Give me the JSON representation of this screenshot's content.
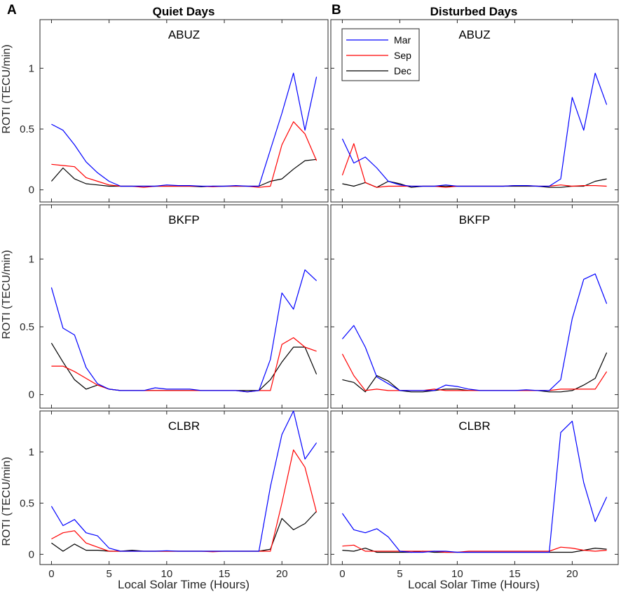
{
  "figure": {
    "panel_labels": [
      "A",
      "B"
    ],
    "column_titles": [
      "Quiet Days",
      "Disturbed Days"
    ],
    "ylabel": "ROTI (TECU/min)",
    "xlabel": "Local Solar Time (Hours)",
    "legend": {
      "entries": [
        "Mar",
        "Sep",
        "Dec"
      ],
      "placement": "top-left of right-top panel"
    },
    "colors": {
      "Mar": "#0000ff",
      "Sep": "#ff0000",
      "Dec": "#000000",
      "axes": "#262626"
    }
  },
  "chart_data": [
    {
      "type": "line",
      "column": "Quiet Days",
      "title": "ABUZ",
      "xlabel": "",
      "ylabel": "ROTI (TECU/min)",
      "xlim": [
        -1,
        24
      ],
      "ylim": [
        -0.1,
        1.4
      ],
      "xticks": [
        0,
        5,
        10,
        15,
        20
      ],
      "yticks": [
        0,
        0.5,
        1
      ],
      "x": [
        0,
        1,
        2,
        3,
        4,
        5,
        6,
        7,
        8,
        9,
        10,
        11,
        12,
        13,
        14,
        15,
        16,
        17,
        18,
        19,
        20,
        21,
        22,
        23
      ],
      "series": [
        {
          "name": "Mar",
          "values": [
            0.54,
            0.49,
            0.37,
            0.23,
            0.14,
            0.07,
            0.03,
            0.03,
            0.03,
            0.03,
            0.04,
            0.035,
            0.035,
            0.03,
            0.03,
            0.03,
            0.035,
            0.03,
            0.03,
            0.33,
            0.63,
            0.96,
            0.49,
            0.93
          ]
        },
        {
          "name": "Sep",
          "values": [
            0.21,
            0.2,
            0.19,
            0.1,
            0.07,
            0.04,
            0.03,
            0.03,
            0.02,
            0.03,
            0.03,
            0.03,
            0.03,
            0.03,
            0.025,
            0.03,
            0.03,
            0.03,
            0.02,
            0.03,
            0.37,
            0.56,
            0.46,
            0.24
          ]
        },
        {
          "name": "Dec",
          "values": [
            0.07,
            0.18,
            0.09,
            0.05,
            0.04,
            0.03,
            0.03,
            0.03,
            0.03,
            0.03,
            0.03,
            0.03,
            0.03,
            0.025,
            0.03,
            0.03,
            0.03,
            0.03,
            0.03,
            0.07,
            0.09,
            0.17,
            0.24,
            0.25
          ]
        }
      ]
    },
    {
      "type": "line",
      "column": "Disturbed Days",
      "title": "ABUZ",
      "xlabel": "",
      "ylabel": "",
      "xlim": [
        -1,
        24
      ],
      "ylim": [
        -0.1,
        1.4
      ],
      "xticks": [
        0,
        5,
        10,
        15,
        20
      ],
      "yticks": [
        0,
        0.5,
        1
      ],
      "x": [
        0,
        1,
        2,
        3,
        4,
        5,
        6,
        7,
        8,
        9,
        10,
        11,
        12,
        13,
        14,
        15,
        16,
        17,
        18,
        19,
        20,
        21,
        22,
        23
      ],
      "series": [
        {
          "name": "Mar",
          "values": [
            0.42,
            0.22,
            0.27,
            0.18,
            0.07,
            0.04,
            0.03,
            0.03,
            0.03,
            0.04,
            0.03,
            0.03,
            0.03,
            0.03,
            0.03,
            0.035,
            0.035,
            0.03,
            0.03,
            0.09,
            0.76,
            0.49,
            0.96,
            0.7
          ]
        },
        {
          "name": "Sep",
          "values": [
            0.12,
            0.38,
            0.06,
            0.02,
            0.03,
            0.03,
            0.03,
            0.03,
            0.03,
            0.02,
            0.03,
            0.03,
            0.03,
            0.03,
            0.03,
            0.035,
            0.035,
            0.03,
            0.03,
            0.04,
            0.03,
            0.035,
            0.035,
            0.03
          ]
        },
        {
          "name": "Dec",
          "values": [
            0.05,
            0.03,
            0.06,
            0.02,
            0.07,
            0.05,
            0.02,
            0.03,
            0.03,
            0.03,
            0.03,
            0.03,
            0.03,
            0.03,
            0.03,
            0.03,
            0.03,
            0.03,
            0.02,
            0.02,
            0.03,
            0.03,
            0.07,
            0.09
          ]
        }
      ]
    },
    {
      "type": "line",
      "column": "Quiet Days",
      "title": "BKFP",
      "xlabel": "",
      "ylabel": "ROTI (TECU/min)",
      "xlim": [
        -1,
        24
      ],
      "ylim": [
        -0.1,
        1.4
      ],
      "xticks": [
        0,
        5,
        10,
        15,
        20
      ],
      "yticks": [
        0,
        0.5,
        1
      ],
      "x": [
        0,
        1,
        2,
        3,
        4,
        5,
        6,
        7,
        8,
        9,
        10,
        11,
        12,
        13,
        14,
        15,
        16,
        17,
        18,
        19,
        20,
        21,
        22,
        23
      ],
      "series": [
        {
          "name": "Mar",
          "values": [
            0.79,
            0.49,
            0.44,
            0.2,
            0.08,
            0.04,
            0.03,
            0.03,
            0.03,
            0.05,
            0.04,
            0.04,
            0.04,
            0.03,
            0.03,
            0.03,
            0.03,
            0.02,
            0.03,
            0.26,
            0.75,
            0.63,
            0.92,
            0.84
          ]
        },
        {
          "name": "Sep",
          "values": [
            0.21,
            0.21,
            0.17,
            0.12,
            0.07,
            0.04,
            0.03,
            0.03,
            0.03,
            0.03,
            0.03,
            0.03,
            0.03,
            0.03,
            0.03,
            0.03,
            0.03,
            0.02,
            0.03,
            0.03,
            0.37,
            0.42,
            0.35,
            0.32
          ]
        },
        {
          "name": "Dec",
          "values": [
            0.38,
            0.24,
            0.11,
            0.04,
            0.07,
            0.04,
            0.03,
            0.03,
            0.03,
            0.03,
            0.03,
            0.03,
            0.03,
            0.03,
            0.03,
            0.03,
            0.03,
            0.03,
            0.03,
            0.11,
            0.24,
            0.35,
            0.35,
            0.15
          ]
        }
      ]
    },
    {
      "type": "line",
      "column": "Disturbed Days",
      "title": "BKFP",
      "xlabel": "",
      "ylabel": "",
      "xlim": [
        -1,
        24
      ],
      "ylim": [
        -0.1,
        1.4
      ],
      "xticks": [
        0,
        5,
        10,
        15,
        20
      ],
      "yticks": [
        0,
        0.5,
        1
      ],
      "x": [
        0,
        1,
        2,
        3,
        4,
        5,
        6,
        7,
        8,
        9,
        10,
        11,
        12,
        13,
        14,
        15,
        16,
        17,
        18,
        19,
        20,
        21,
        22,
        23
      ],
      "series": [
        {
          "name": "Mar",
          "values": [
            0.41,
            0.51,
            0.35,
            0.13,
            0.08,
            0.03,
            0.03,
            0.03,
            0.03,
            0.07,
            0.06,
            0.04,
            0.03,
            0.03,
            0.03,
            0.03,
            0.035,
            0.03,
            0.03,
            0.11,
            0.56,
            0.85,
            0.89,
            0.67
          ]
        },
        {
          "name": "Sep",
          "values": [
            0.3,
            0.14,
            0.03,
            0.04,
            0.03,
            0.03,
            0.03,
            0.03,
            0.04,
            0.03,
            0.03,
            0.03,
            0.03,
            0.03,
            0.03,
            0.03,
            0.03,
            0.03,
            0.03,
            0.04,
            0.04,
            0.04,
            0.04,
            0.17
          ]
        },
        {
          "name": "Dec",
          "values": [
            0.11,
            0.09,
            0.02,
            0.14,
            0.1,
            0.03,
            0.02,
            0.02,
            0.03,
            0.04,
            0.04,
            0.03,
            0.03,
            0.03,
            0.03,
            0.03,
            0.03,
            0.03,
            0.02,
            0.02,
            0.03,
            0.07,
            0.12,
            0.31
          ]
        }
      ]
    },
    {
      "type": "line",
      "column": "Quiet Days",
      "title": "CLBR",
      "xlabel": "Local Solar Time (Hours)",
      "ylabel": "ROTI (TECU/min)",
      "xlim": [
        -1,
        24
      ],
      "ylim": [
        -0.1,
        1.4
      ],
      "xticks": [
        0,
        5,
        10,
        15,
        20
      ],
      "yticks": [
        0,
        0.5,
        1
      ],
      "x": [
        0,
        1,
        2,
        3,
        4,
        5,
        6,
        7,
        8,
        9,
        10,
        11,
        12,
        13,
        14,
        15,
        16,
        17,
        18,
        19,
        20,
        21,
        22,
        23
      ],
      "series": [
        {
          "name": "Mar",
          "values": [
            0.47,
            0.28,
            0.34,
            0.21,
            0.18,
            0.06,
            0.03,
            0.03,
            0.03,
            0.03,
            0.035,
            0.03,
            0.03,
            0.03,
            0.03,
            0.03,
            0.03,
            0.03,
            0.03,
            0.66,
            1.17,
            1.4,
            0.93,
            1.09
          ]
        },
        {
          "name": "Sep",
          "values": [
            0.15,
            0.21,
            0.23,
            0.11,
            0.07,
            0.03,
            0.03,
            0.03,
            0.03,
            0.03,
            0.03,
            0.03,
            0.03,
            0.03,
            0.025,
            0.03,
            0.03,
            0.03,
            0.03,
            0.03,
            0.5,
            1.02,
            0.85,
            0.41
          ]
        },
        {
          "name": "Dec",
          "values": [
            0.11,
            0.03,
            0.1,
            0.04,
            0.04,
            0.03,
            0.03,
            0.04,
            0.03,
            0.03,
            0.03,
            0.03,
            0.03,
            0.03,
            0.03,
            0.03,
            0.03,
            0.03,
            0.03,
            0.05,
            0.35,
            0.24,
            0.3,
            0.42
          ]
        }
      ]
    },
    {
      "type": "line",
      "column": "Disturbed Days",
      "title": "CLBR",
      "xlabel": "Local Solar Time (Hours)",
      "ylabel": "",
      "xlim": [
        -1,
        24
      ],
      "ylim": [
        -0.1,
        1.4
      ],
      "xticks": [
        0,
        5,
        10,
        15,
        20
      ],
      "yticks": [
        0,
        0.5,
        1
      ],
      "x": [
        0,
        1,
        2,
        3,
        4,
        5,
        6,
        7,
        8,
        9,
        10,
        11,
        12,
        13,
        14,
        15,
        16,
        17,
        18,
        19,
        20,
        21,
        22,
        23
      ],
      "series": [
        {
          "name": "Mar",
          "values": [
            0.4,
            0.24,
            0.21,
            0.25,
            0.17,
            0.03,
            0.02,
            0.02,
            0.03,
            0.03,
            0.02,
            0.02,
            0.02,
            0.02,
            0.02,
            0.02,
            0.02,
            0.02,
            0.02,
            1.19,
            1.3,
            0.7,
            0.32,
            0.56
          ]
        },
        {
          "name": "Sep",
          "values": [
            0.08,
            0.09,
            0.03,
            0.03,
            0.03,
            0.03,
            0.03,
            0.03,
            0.03,
            0.02,
            0.02,
            0.03,
            0.03,
            0.03,
            0.03,
            0.03,
            0.03,
            0.03,
            0.03,
            0.07,
            0.06,
            0.04,
            0.03,
            0.04
          ]
        },
        {
          "name": "Dec",
          "values": [
            0.04,
            0.03,
            0.06,
            0.02,
            0.02,
            0.02,
            0.02,
            0.03,
            0.02,
            0.02,
            0.02,
            0.02,
            0.02,
            0.02,
            0.02,
            0.02,
            0.02,
            0.02,
            0.02,
            0.02,
            0.02,
            0.04,
            0.06,
            0.05
          ]
        }
      ]
    }
  ]
}
